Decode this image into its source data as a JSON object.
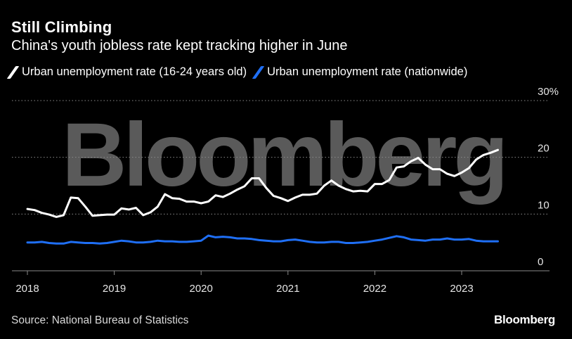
{
  "title": "Still Climbing",
  "subtitle": "China's youth jobless rate kept tracking higher in June",
  "source": "Source: National Bureau of Statistics",
  "brand": "Bloomberg",
  "watermark": "Bloomberg",
  "chart_data": {
    "type": "line",
    "x_start": "2018-01",
    "x_frequency": "monthly",
    "x_ticks": [
      "2018",
      "2019",
      "2020",
      "2021",
      "2022",
      "2023"
    ],
    "y_ticks": [
      "0",
      "10",
      "20",
      "30%"
    ],
    "ylim": [
      0,
      30
    ],
    "grid": true,
    "legend_position": "top-left",
    "series": [
      {
        "name": "Urban unemployment rate (16-24 years old)",
        "color": "#ffffff",
        "values": [
          10.9,
          10.7,
          10.2,
          9.9,
          9.5,
          9.8,
          12.9,
          12.8,
          11.3,
          9.7,
          9.8,
          9.9,
          9.9,
          11.0,
          10.8,
          11.1,
          9.8,
          10.3,
          11.3,
          13.5,
          12.8,
          12.7,
          12.2,
          12.2,
          11.9,
          12.2,
          13.3,
          13.0,
          13.6,
          14.3,
          14.9,
          16.3,
          16.3,
          14.6,
          13.2,
          12.8,
          12.3,
          12.9,
          13.4,
          13.4,
          13.6,
          15.0,
          15.9,
          15.0,
          14.4,
          14.0,
          14.1,
          14.0,
          15.3,
          15.3,
          16.0,
          18.2,
          18.4,
          19.3,
          19.9,
          18.7,
          17.9,
          17.9,
          17.1,
          16.7,
          17.3,
          18.1,
          19.6,
          20.4,
          20.8,
          21.3
        ]
      },
      {
        "name": "Urban unemployment rate (nationwide)",
        "color": "#1f6ff5",
        "values": [
          5.0,
          5.0,
          5.1,
          4.9,
          4.8,
          4.8,
          5.1,
          5.0,
          4.9,
          4.9,
          4.8,
          4.9,
          5.1,
          5.3,
          5.2,
          5.0,
          5.0,
          5.1,
          5.3,
          5.2,
          5.2,
          5.1,
          5.1,
          5.2,
          5.3,
          6.2,
          5.9,
          6.0,
          5.9,
          5.7,
          5.7,
          5.6,
          5.4,
          5.3,
          5.2,
          5.2,
          5.4,
          5.5,
          5.3,
          5.1,
          5.0,
          5.0,
          5.1,
          5.1,
          4.9,
          4.9,
          5.0,
          5.1,
          5.3,
          5.5,
          5.8,
          6.1,
          5.9,
          5.5,
          5.4,
          5.3,
          5.5,
          5.5,
          5.7,
          5.5,
          5.5,
          5.6,
          5.3,
          5.2,
          5.2,
          5.2
        ]
      }
    ]
  }
}
